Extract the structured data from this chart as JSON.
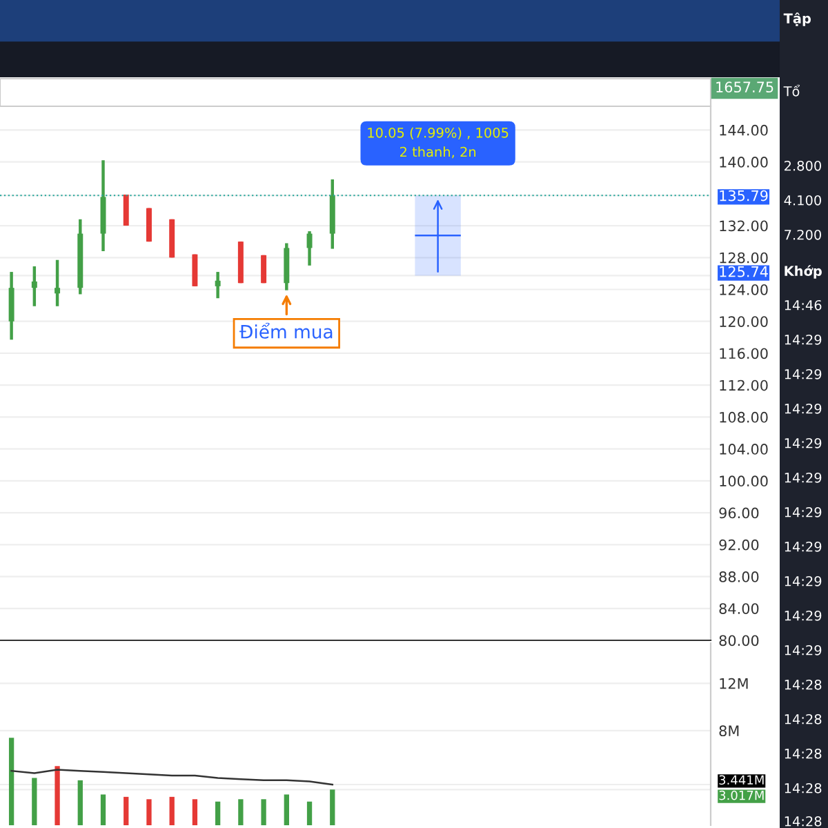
{
  "chart_data": [
    {
      "type": "other",
      "annotations": [
        "1657.75"
      ]
    },
    {
      "type": "candlestick",
      "categories": [
        null,
        null,
        null,
        null,
        null,
        null,
        null,
        null,
        null,
        null,
        null,
        null,
        null,
        null,
        null,
        null,
        null,
        null,
        null,
        null,
        null,
        null,
        null,
        null,
        null,
        null,
        null,
        null,
        null,
        null,
        null
      ],
      "ohlc": [
        [
          120.0,
          126.2,
          117.7,
          124.2
        ],
        [
          124.2,
          126.9,
          121.9,
          125.0
        ],
        [
          123.5,
          127.7,
          121.9,
          124.2
        ],
        [
          124.2,
          132.8,
          123.4,
          131.0
        ],
        [
          131.0,
          140.2,
          128.8,
          135.6
        ],
        [
          135.9,
          135.9,
          132.0,
          132.0
        ],
        [
          134.2,
          134.2,
          130.0,
          130.0
        ],
        [
          132.8,
          132.8,
          128.0,
          128.0
        ],
        [
          128.4,
          128.4,
          124.4,
          124.4
        ],
        [
          124.4,
          126.2,
          122.9,
          125.1
        ],
        [
          130.0,
          130.0,
          124.8,
          124.8
        ],
        [
          128.3,
          128.3,
          124.8,
          124.8
        ],
        [
          124.8,
          129.8,
          123.9,
          129.2
        ],
        [
          129.2,
          131.3,
          127.0,
          131.0
        ],
        [
          131.0,
          137.8,
          129.1,
          135.79
        ],
        null,
        null,
        null,
        null,
        null,
        null,
        null,
        null,
        null,
        null,
        null,
        null,
        null,
        null,
        null,
        null
      ],
      "colors": [
        "#43a047",
        "#43a047",
        "#43a047",
        "#43a047",
        "#43a047",
        "#e53935",
        "#e53935",
        "#e53935",
        "#e53935",
        "#43a047",
        "#e53935",
        "#e53935",
        "#43a047",
        "#43a047",
        "#43a047",
        null,
        null,
        null,
        null,
        null,
        null,
        null,
        null,
        null,
        null,
        null,
        null,
        null,
        null,
        null,
        null
      ],
      "ylim": [
        80,
        146.8
      ],
      "yticks": [
        {
          "value": 80,
          "label": "80.00"
        },
        {
          "value": 84,
          "label": "84.00"
        },
        {
          "value": 88,
          "label": "88.00"
        },
        {
          "value": 92,
          "label": "92.00"
        },
        {
          "value": 96,
          "label": "96.00"
        },
        {
          "value": 100,
          "label": "100.00"
        },
        {
          "value": 104,
          "label": "104.00"
        },
        {
          "value": 108,
          "label": "108.00"
        },
        {
          "value": 112,
          "label": "112.00"
        },
        {
          "value": 116,
          "label": "116.00"
        },
        {
          "value": 120,
          "label": "120.00"
        },
        {
          "value": 124,
          "label": "124.00"
        },
        {
          "value": 125.74,
          "label": "125.74"
        },
        {
          "value": 128,
          "label": "128.00"
        },
        {
          "value": 132,
          "label": "132.00"
        },
        {
          "value": 135.79,
          "label": "135.79"
        },
        {
          "value": 140,
          "label": "140.00"
        },
        {
          "value": 144,
          "label": "144.00"
        }
      ],
      "grid": "y",
      "ref_lines": [
        {
          "axis": "y",
          "value": 135.79,
          "color": "#26a69a",
          "line_style": "dotted"
        }
      ],
      "bands": [
        {
          "axis": "y",
          "from": 125.74,
          "to": 135.79,
          "color": "#2962ff"
        }
      ],
      "annotations": [
        {
          "text": "Điểm mua",
          "y": 123.9
        },
        "10.05 (7.99%) , 1005\n2 thanh, 2n"
      ]
    },
    {
      "type": "bar",
      "categories": [
        null,
        null,
        null,
        null,
        null,
        null,
        null,
        null,
        null,
        null,
        null,
        null,
        null,
        null,
        null,
        null,
        null,
        null,
        null,
        null,
        null,
        null,
        null,
        null,
        null,
        null,
        null,
        null,
        null,
        null,
        null
      ],
      "series": [
        {
          "type": "bar",
          "values": [
            7.4,
            4.0,
            5.0,
            3.8,
            2.6,
            2.4,
            2.2,
            2.4,
            2.2,
            2.0,
            2.2,
            2.2,
            2.6,
            2.0,
            3.017,
            null,
            null,
            null,
            null,
            null,
            null,
            null,
            null,
            null,
            null,
            null,
            null,
            null,
            null,
            null,
            null
          ],
          "colors": [
            "#43a047",
            "#43a047",
            "#e53935",
            "#43a047",
            "#43a047",
            "#e53935",
            "#e53935",
            "#e53935",
            "#e53935",
            "#43a047",
            "#43a047",
            "#43a047",
            "#43a047",
            "#43a047",
            "#43a047",
            null,
            null,
            null,
            null,
            null,
            null,
            null,
            null,
            null,
            null,
            null,
            null,
            null,
            null,
            null,
            null
          ]
        },
        {
          "type": "line",
          "color": "#333333",
          "values": [
            4.6,
            4.4,
            4.7,
            4.6,
            4.5,
            4.4,
            4.3,
            4.2,
            4.2,
            4.0,
            3.9,
            3.8,
            3.8,
            3.7,
            3.441,
            null,
            null,
            null,
            null,
            null,
            null,
            null,
            null,
            null,
            null,
            null,
            null,
            null,
            null,
            null,
            null
          ]
        }
      ],
      "ylim": [
        0,
        15.4
      ],
      "yticks": [
        {
          "value": 3.017,
          "label": "3.017M"
        },
        {
          "value": 3.441,
          "label": "3.441M"
        },
        {
          "value": 8,
          "label": "8M"
        },
        {
          "value": 12,
          "label": "12M"
        }
      ],
      "grid": "y"
    },
    {
      "type": "other",
      "annotations": [
        "Tập",
        "Tổ",
        "2.800",
        "4.100",
        "7.200",
        "Khớp",
        "14:46",
        "14:29",
        "14:29",
        "14:29",
        "14:29",
        "14:29",
        "14:29",
        "14:29",
        "14:29",
        "14:29",
        "14:29",
        "14:28",
        "14:28",
        "14:28",
        "14:28",
        "14:28"
      ]
    }
  ]
}
